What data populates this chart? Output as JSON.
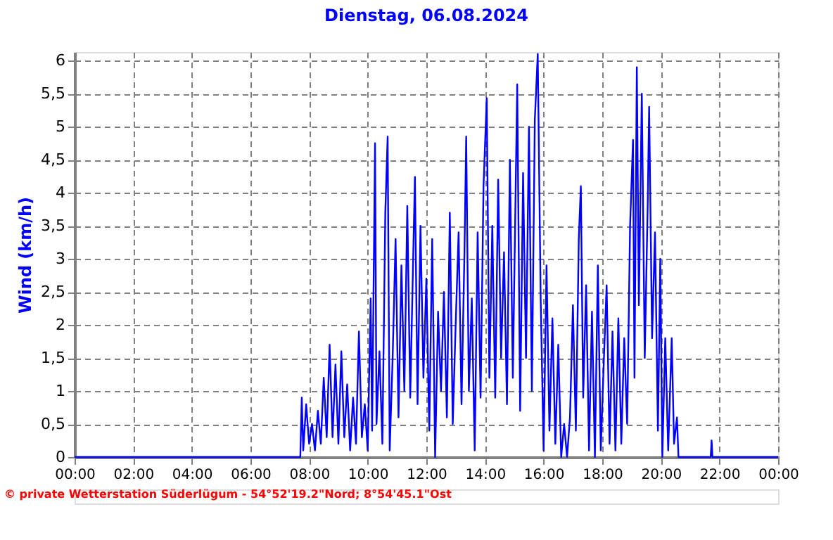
{
  "chart_data": {
    "type": "line",
    "title": "Dienstag, 06.08.2024",
    "ylabel": "Wind  (km/h)",
    "annotations": [
      "© private Wetterstation Süderlügum - 54°52'19.2\"Nord; 8°54'45.1\"Ost"
    ],
    "xlim": [
      0,
      24
    ],
    "ylim": [
      0,
      6.13
    ],
    "xticks": [
      {
        "value": 0,
        "label": "00:00"
      },
      {
        "value": 2,
        "label": "02:00"
      },
      {
        "value": 4,
        "label": "04:00"
      },
      {
        "value": 6,
        "label": "06:00"
      },
      {
        "value": 8,
        "label": "08:00"
      },
      {
        "value": 10,
        "label": "10:00"
      },
      {
        "value": 12,
        "label": "12:00"
      },
      {
        "value": 14,
        "label": "14:00"
      },
      {
        "value": 16,
        "label": "16:00"
      },
      {
        "value": 18,
        "label": "18:00"
      },
      {
        "value": 20,
        "label": "20:00"
      },
      {
        "value": 22,
        "label": "22:00"
      },
      {
        "value": 24,
        "label": "00:00"
      }
    ],
    "yticks": [
      0,
      {
        "value": 0.5,
        "label": "0,5"
      },
      1,
      {
        "value": 1.5,
        "label": "1,5"
      },
      2,
      {
        "value": 2.5,
        "label": "2,5"
      },
      3,
      {
        "value": 3.5,
        "label": "3,5"
      },
      4,
      {
        "value": 4.5,
        "label": "4,5"
      },
      5,
      {
        "value": 5.5,
        "label": "5,5"
      },
      6
    ],
    "grid": true,
    "marker": "none",
    "line_style": "solid",
    "series": [
      {
        "color": "#0000ff",
        "x": [
          0,
          7.7,
          7.75,
          7.8,
          7.9,
          8.0,
          8.1,
          8.2,
          8.3,
          8.4,
          8.5,
          8.6,
          8.7,
          8.8,
          8.9,
          9.0,
          9.1,
          9.2,
          9.3,
          9.4,
          9.5,
          9.6,
          9.7,
          9.8,
          9.9,
          10.0,
          10.1,
          10.15,
          10.25,
          10.3,
          10.4,
          10.5,
          10.6,
          10.68,
          10.75,
          10.85,
          10.95,
          11.05,
          11.15,
          11.25,
          11.35,
          11.45,
          11.55,
          11.61,
          11.7,
          11.8,
          11.9,
          12.0,
          12.1,
          12.2,
          12.3,
          12.4,
          12.5,
          12.6,
          12.7,
          12.8,
          12.9,
          13.0,
          13.1,
          13.2,
          13.3,
          13.36,
          13.45,
          13.55,
          13.65,
          13.75,
          13.85,
          13.95,
          14.06,
          14.15,
          14.25,
          14.35,
          14.45,
          14.55,
          14.65,
          14.75,
          14.85,
          14.95,
          15.1,
          15.2,
          15.3,
          15.4,
          15.5,
          15.6,
          15.7,
          15.8,
          15.9,
          16.0,
          16.1,
          16.2,
          16.3,
          16.4,
          16.5,
          16.6,
          16.7,
          16.8,
          16.9,
          17.0,
          17.1,
          17.2,
          17.27,
          17.35,
          17.45,
          17.55,
          17.65,
          17.75,
          17.85,
          17.95,
          18.05,
          18.15,
          18.25,
          18.35,
          18.45,
          18.55,
          18.65,
          18.75,
          18.85,
          18.95,
          19.05,
          19.1,
          19.18,
          19.25,
          19.35,
          19.45,
          19.55,
          19.6,
          19.7,
          19.8,
          19.9,
          19.98,
          20.05,
          20.15,
          20.25,
          20.37,
          20.45,
          20.55,
          20.6,
          21.7,
          21.73,
          21.76,
          24
        ],
        "values": [
          0,
          0,
          0.9,
          0.1,
          0.8,
          0.2,
          0.5,
          0.1,
          0.7,
          0.2,
          1.2,
          0.3,
          1.7,
          0.3,
          1.4,
          0.2,
          1.6,
          0.3,
          1.1,
          0.1,
          0.9,
          0.2,
          1.9,
          0.3,
          0.8,
          0.1,
          2.4,
          0.4,
          4.75,
          0.5,
          1.6,
          0.2,
          3.7,
          4.85,
          0.1,
          1.5,
          3.3,
          0.6,
          2.9,
          1.0,
          3.8,
          0.9,
          3.0,
          4.24,
          0.8,
          3.5,
          1.2,
          2.7,
          0.4,
          3.3,
          0.0,
          2.2,
          1.0,
          2.5,
          0.6,
          3.7,
          0.5,
          2.0,
          3.4,
          0.8,
          3.1,
          4.85,
          1.0,
          2.4,
          0.1,
          3.4,
          0.9,
          4.1,
          5.43,
          1.2,
          3.5,
          0.9,
          4.2,
          1.5,
          3.1,
          0.8,
          4.5,
          1.2,
          5.64,
          0.7,
          4.3,
          1.5,
          5.0,
          1.0,
          5.1,
          6.1,
          2.4,
          0.1,
          2.9,
          0.4,
          2.1,
          0.2,
          1.7,
          0.0,
          0.5,
          0.0,
          0.6,
          2.3,
          0.4,
          3.3,
          4.1,
          0.9,
          2.6,
          0.1,
          2.2,
          0.0,
          2.9,
          0.1,
          1.4,
          2.6,
          0.2,
          1.9,
          0.1,
          2.1,
          0.2,
          1.8,
          0.5,
          3.5,
          4.8,
          1.2,
          5.9,
          2.3,
          5.5,
          1.5,
          3.8,
          5.3,
          1.8,
          3.4,
          0.4,
          3.0,
          0.0,
          1.8,
          0.1,
          1.8,
          0.2,
          0.6,
          0.0,
          0.0,
          0.25,
          0.0,
          0
        ]
      }
    ]
  }
}
